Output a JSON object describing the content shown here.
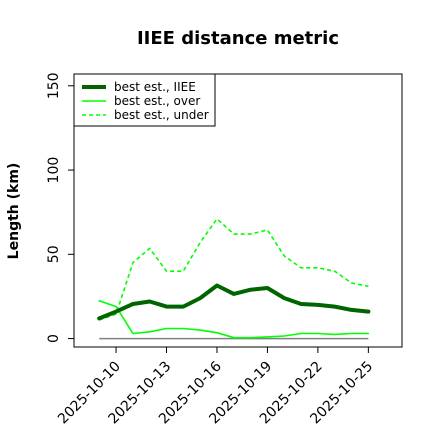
{
  "chart_data": {
    "type": "line",
    "title": "IIEE distance metric",
    "xlabel": "",
    "ylabel": "Length (km)",
    "ylim": [
      -5,
      157
    ],
    "ytick_values": [
      0,
      50,
      100,
      150
    ],
    "ytick_labels": [
      "0",
      "50",
      "100",
      "150"
    ],
    "xlim": [
      "2025-10-07T12:00",
      "2025-10-27T00:00"
    ],
    "xtick_values": [
      "2025-10-10",
      "2025-10-13",
      "2025-10-16",
      "2025-10-19",
      "2025-10-22",
      "2025-10-25"
    ],
    "xtick_labels": [
      "2025-10-10",
      "2025-10-13",
      "2025-10-16",
      "2025-10-19",
      "2025-10-22",
      "2025-10-25"
    ],
    "grid": false,
    "legend_position": "top-left",
    "reference_line": {
      "y": 0,
      "x_range": [
        "2025-10-09",
        "2025-10-25"
      ],
      "color": "#808080"
    },
    "series": [
      {
        "name": "best est., IIEE",
        "color": "#006400",
        "style": "solid",
        "x": [
          "2025-10-09",
          "2025-10-10",
          "2025-10-11",
          "2025-10-12",
          "2025-10-13",
          "2025-10-14",
          "2025-10-15",
          "2025-10-16",
          "2025-10-17",
          "2025-10-18",
          "2025-10-19",
          "2025-10-20",
          "2025-10-21",
          "2025-10-22",
          "2025-10-23",
          "2025-10-24",
          "2025-10-25"
        ],
        "y": [
          12,
          16,
          20.5,
          22,
          19,
          19,
          24,
          31.5,
          26.5,
          29,
          30,
          24,
          20.5,
          20,
          19,
          17,
          16
        ]
      },
      {
        "name": "best est., over",
        "color": "#00ff00",
        "style": "solid",
        "x": [
          "2025-10-09",
          "2025-10-10",
          "2025-10-11",
          "2025-10-12",
          "2025-10-13",
          "2025-10-14",
          "2025-10-15",
          "2025-10-16",
          "2025-10-17",
          "2025-10-18",
          "2025-10-19",
          "2025-10-20",
          "2025-10-21",
          "2025-10-22",
          "2025-10-23",
          "2025-10-24",
          "2025-10-25"
        ],
        "y": [
          22.5,
          19,
          3,
          4,
          6,
          6,
          5,
          3.5,
          0.5,
          0.5,
          1,
          1.5,
          3,
          3,
          2.5,
          3,
          3
        ]
      },
      {
        "name": "best est., under",
        "color": "#00ff00",
        "style": "dashed",
        "x": [
          "2025-10-09",
          "2025-10-10",
          "2025-10-11",
          "2025-10-12",
          "2025-10-13",
          "2025-10-14",
          "2025-10-15",
          "2025-10-16",
          "2025-10-17",
          "2025-10-18",
          "2025-10-19",
          "2025-10-20",
          "2025-10-21",
          "2025-10-22",
          "2025-10-23",
          "2025-10-24",
          "2025-10-25"
        ],
        "y": [
          11,
          14.5,
          45,
          53.5,
          40,
          40,
          57,
          71,
          62,
          62,
          64.5,
          49,
          42,
          42,
          40,
          33,
          31
        ]
      }
    ]
  }
}
